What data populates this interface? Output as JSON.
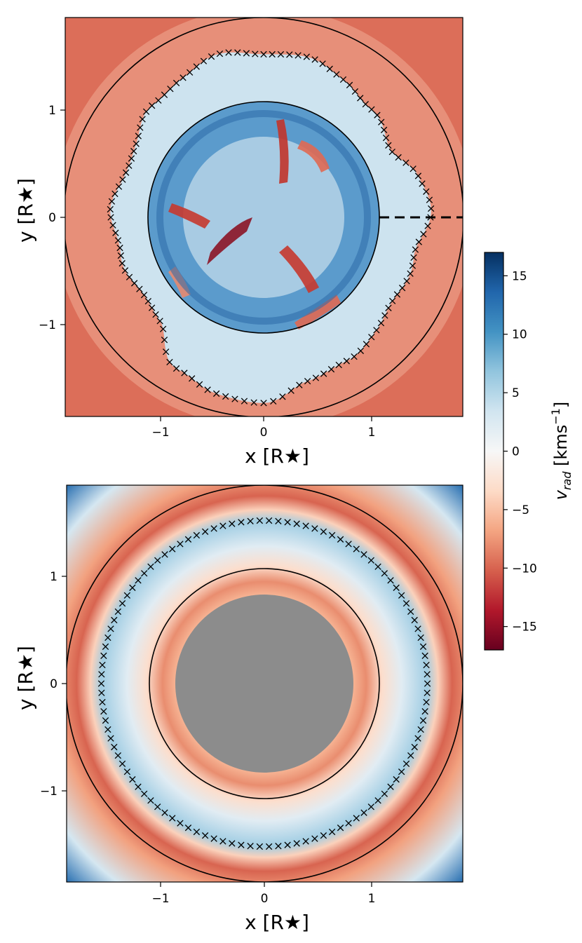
{
  "chart_data": [
    {
      "type": "heatmap",
      "panel": "top",
      "title": "",
      "xlabel": "x [R★]",
      "ylabel": "y [R★]",
      "xlim": [
        -1.85,
        1.85
      ],
      "ylim": [
        -1.85,
        1.85
      ],
      "xticks": [
        -1,
        0,
        1
      ],
      "yticks": [
        -1,
        0,
        1
      ],
      "xtick_labels": [
        "−1",
        "0",
        "1"
      ],
      "ytick_labels": [
        "−1",
        "0",
        "1"
      ],
      "circles": [
        1.08,
        1.85
      ],
      "dashed_segment": {
        "x": [
          1.08,
          1.85
        ],
        "y": [
          0,
          0
        ],
        "color": "#000000"
      },
      "marker": "x",
      "shock_front_polar": {
        "angles_deg": [
          0,
          15,
          30,
          45,
          60,
          75,
          90,
          105,
          120,
          135,
          150,
          165,
          180,
          195,
          210,
          225,
          240,
          255,
          270,
          285,
          300,
          315,
          330,
          345
        ],
        "radius": [
          1.55,
          1.48,
          1.35,
          1.4,
          1.5,
          1.52,
          1.54,
          1.55,
          1.52,
          1.45,
          1.38,
          1.35,
          1.42,
          1.38,
          1.32,
          1.38,
          1.6,
          1.72,
          1.7,
          1.6,
          1.52,
          1.5,
          1.42,
          1.45
        ]
      },
      "colormap": "RdBu",
      "color_positive": "#053061",
      "color_negative": "#67001f"
    },
    {
      "type": "heatmap",
      "panel": "bottom",
      "title": "",
      "xlabel": "x [R★]",
      "ylabel": "y [R★]",
      "xlim": [
        -1.85,
        1.85
      ],
      "ylim": [
        -1.85,
        1.85
      ],
      "xticks": [
        -1,
        0,
        1
      ],
      "yticks": [
        -1,
        0,
        1
      ],
      "xtick_labels": [
        "−1",
        "0",
        "1"
      ],
      "ytick_labels": [
        "−1",
        "0",
        "1"
      ],
      "circles": [
        1.08,
        1.85
      ],
      "marker": "x",
      "shock_front_radius": 1.52,
      "masked_core_radius": 0.83,
      "masked_color": "#8c8c8c",
      "radial_profile": {
        "r": [
          0.83,
          0.95,
          1.1,
          1.28,
          1.45,
          1.52,
          1.62,
          1.75,
          1.95,
          2.3,
          2.62
        ],
        "vrad": [
          -6,
          -8,
          -3,
          2,
          5,
          6,
          -4,
          -10,
          -7,
          3,
          13
        ]
      }
    },
    {
      "type": "colorbar",
      "label": "v_rad [kms⁻¹]",
      "vmin": -17,
      "vmax": 17,
      "ticks": [
        15,
        10,
        5,
        0,
        -5,
        -10,
        -15
      ],
      "tick_labels": [
        "15",
        "10",
        "5",
        "0",
        "−5",
        "−10",
        "−15"
      ],
      "colormap": "RdBu"
    }
  ]
}
